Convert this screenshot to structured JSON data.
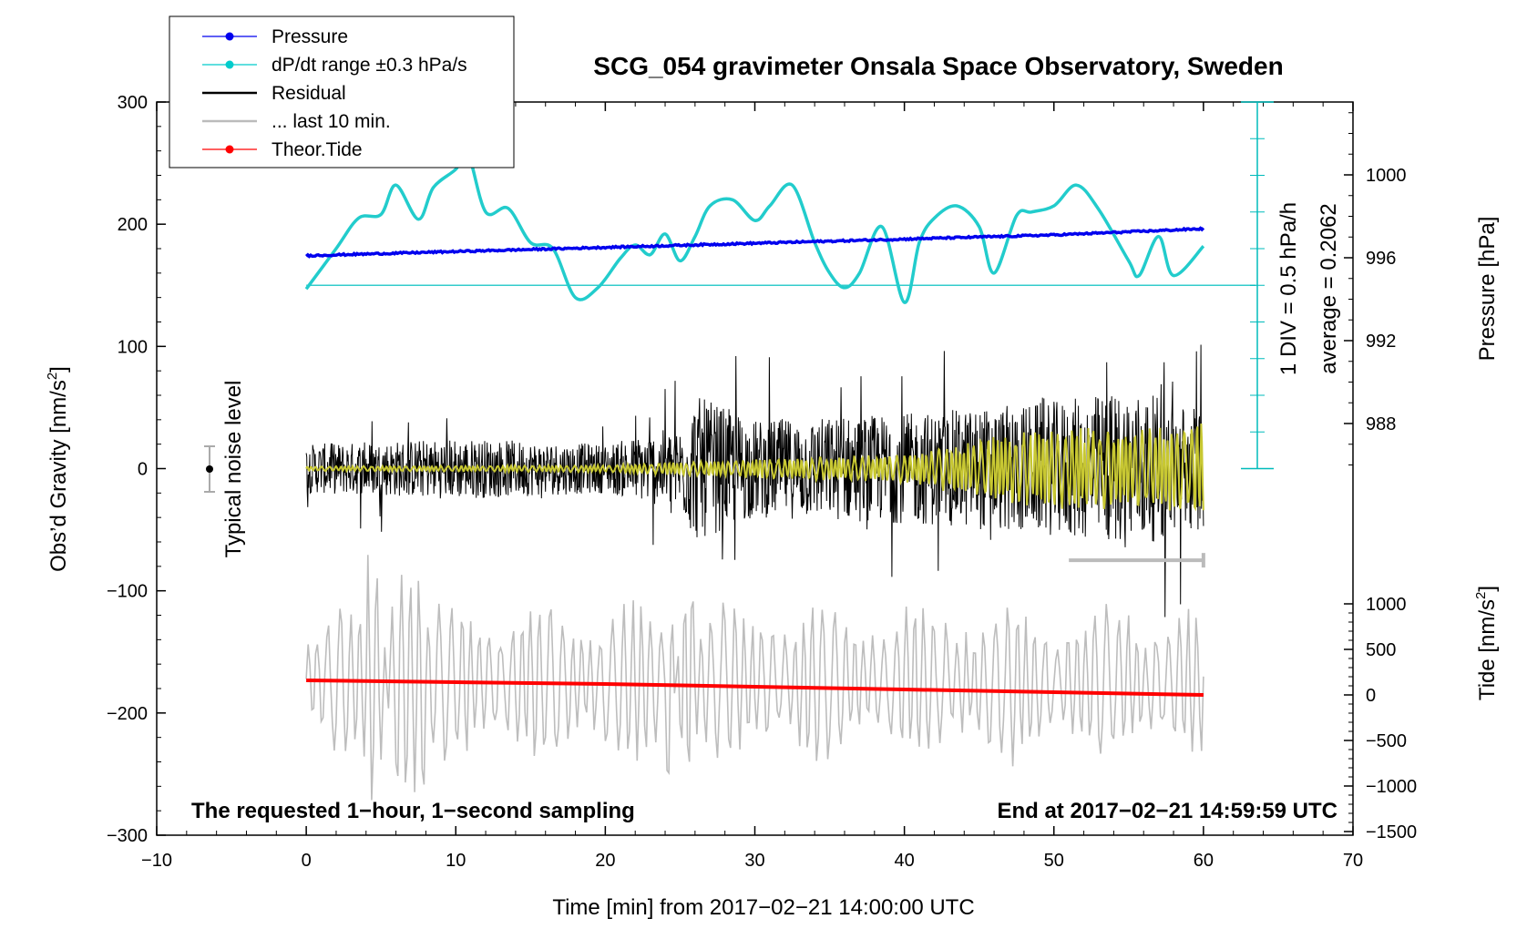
{
  "chart_data": {
    "type": "line",
    "title": "SCG_054 gravimeter Onsala Space Observatory, Sweden",
    "xlabel": "Time [min] from 2017−02−21 14:00:00 UTC",
    "ylabel_left": "Obs’d Gravity [nm/s",
    "ylabel_left_sup": "2",
    "ylabel_left_end": "]",
    "ylabel_right_pressure": "Pressure [hPa]",
    "ylabel_right_tide": "Tide [nm/s",
    "ylabel_right_tide_sup": "2",
    "ylabel_right_tide_end": "]",
    "xlim": [
      -10,
      70
    ],
    "ylim": [
      -300,
      300
    ],
    "x_ticks": [
      "−10",
      "0",
      "10",
      "20",
      "30",
      "40",
      "50",
      "60",
      "70"
    ],
    "x_tick_values": [
      -10,
      0,
      10,
      20,
      30,
      40,
      50,
      60,
      70
    ],
    "y_ticks": [
      "300",
      "200",
      "100",
      "0",
      "−100",
      "−200",
      "−300"
    ],
    "y_tick_values": [
      300,
      200,
      100,
      0,
      -100,
      -200,
      -300
    ],
    "pressure_ticks": [
      "1000",
      "996",
      "992",
      "988"
    ],
    "pressure_tick_values": [
      1000,
      996,
      992,
      988
    ],
    "pressure_range_hpa": [
      980,
      1004
    ],
    "tide_ticks": [
      "1000",
      "500",
      "0",
      "−500",
      "−1000",
      "−1500"
    ],
    "tide_tick_values": [
      1000,
      500,
      0,
      -500,
      -1000,
      -1500
    ],
    "tide_range": [
      -1500,
      1000
    ],
    "legend": [
      {
        "label": "Pressure",
        "color": "#0000ee",
        "marker": true
      },
      {
        "label": "dP/dt range ±0.3 hPa/s",
        "color": "#00cccc",
        "marker": true
      },
      {
        "label": "Residual",
        "color": "#000000",
        "marker": false
      },
      {
        "label": "... last 10 min.",
        "color": "#bbbbbb",
        "marker": false
      },
      {
        "label": "Theor.Tide",
        "color": "#ff0000",
        "marker": true
      }
    ],
    "annotations": {
      "noise_label": "Typical noise level",
      "div_label": "1 DIV = 0.5 hPa/h",
      "average_label": "average = 0.2062",
      "bottom_left": "The requested 1−hour, 1−second sampling",
      "bottom_right": "End at 2017−02−21 14:59:59 UTC"
    },
    "series": [
      {
        "name": "Pressure",
        "unit": "hPa",
        "color": "#0000ee",
        "x": [
          0,
          10,
          20,
          30,
          40,
          50,
          60
        ],
        "values": [
          996.1,
          996.3,
          996.5,
          996.7,
          996.9,
          997.1,
          997.4
        ]
      },
      {
        "name": "dP/dt",
        "color": "#00cccc",
        "x": [
          0,
          2,
          3.5,
          5,
          6,
          7.5,
          8.5,
          10,
          10.8,
          12,
          13.5,
          15,
          16.5,
          18,
          19.5,
          21,
          22,
          23,
          24,
          25,
          26,
          27,
          28.5,
          30,
          31,
          32.5,
          34,
          35,
          36,
          37,
          38.5,
          40,
          41,
          42,
          43.5,
          45,
          46,
          47.5,
          48.5,
          50,
          51.5,
          53,
          55,
          55.7,
          57,
          58,
          60
        ],
        "values": [
          147,
          180,
          205,
          208,
          232,
          204,
          230,
          245,
          258,
          210,
          213,
          185,
          180,
          140,
          148,
          172,
          183,
          175,
          192,
          170,
          190,
          215,
          220,
          203,
          215,
          232,
          185,
          160,
          148,
          160,
          198,
          136,
          185,
          205,
          215,
          198,
          160,
          207,
          210,
          215,
          232,
          212,
          170,
          158,
          190,
          158,
          182
        ]
      },
      {
        "name": "Residual",
        "unit": "nm/s²",
        "color": "#000000",
        "x": [
          0,
          10,
          20,
          25,
          26,
          30,
          40,
          50,
          55,
          60
        ],
        "amplitude": [
          20,
          25,
          20,
          35,
          60,
          40,
          45,
          55,
          65,
          50
        ]
      },
      {
        "name": "Filtered residual",
        "color": "#c8c832",
        "x": [
          0,
          20,
          30,
          40,
          47,
          50,
          55,
          60
        ],
        "amplitude": [
          2,
          3,
          8,
          12,
          30,
          35,
          35,
          40
        ]
      },
      {
        "name": "Theor.Tide",
        "unit": "nm/s²",
        "color": "#ff0000",
        "x": [
          0,
          10,
          20,
          30,
          40,
          50,
          60
        ],
        "values": [
          160,
          140,
          120,
          90,
          60,
          30,
          0
        ]
      },
      {
        "name": "last 10 min.",
        "color": "#bbbbbb",
        "x": [
          51,
          60
        ],
        "values": [
          -75,
          -75
        ]
      }
    ]
  }
}
